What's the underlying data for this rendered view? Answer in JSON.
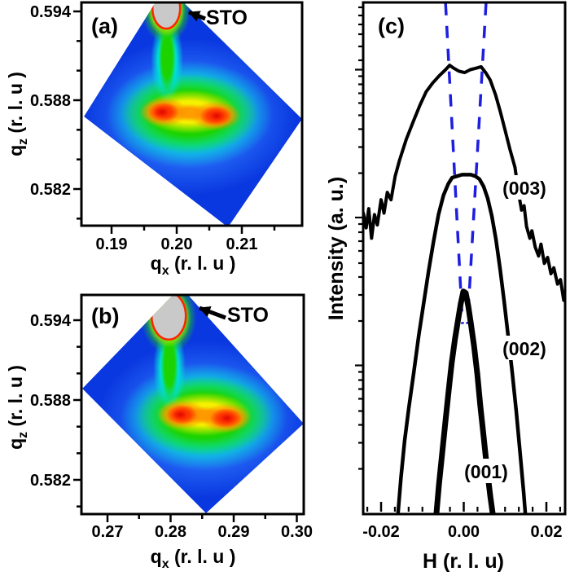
{
  "colors": {
    "map_blue_base": "#0a38e0",
    "map_blue_mid": "#2f7bff",
    "map_cyan": "#00e0d8",
    "map_green": "#1cd300",
    "map_yellow": "#f5f000",
    "map_orange": "#ff9000",
    "map_red": "#ff3200",
    "map_dark_red": "#dd0000",
    "substrate_gray": "#c9c9c9",
    "contour_red": "#ff2400",
    "guide_dash_blue": "#1e1ee0",
    "axis_black": "#000000"
  },
  "chart_data": [
    {
      "id": "a",
      "type": "heatmap",
      "panel_label": "(a)",
      "annotation": "STO",
      "xlabel_parts": {
        "base": "q",
        "sub": "x",
        "unit": " (r. l. u )"
      },
      "ylabel_parts": {
        "base": "q",
        "sub": "z",
        "unit": " (r. l. u )"
      },
      "xlim": [
        0.1854,
        0.2193
      ],
      "ylim": [
        0.5795,
        0.5946
      ],
      "x_ticks": {
        "major": [
          0.19,
          0.2,
          0.21
        ],
        "labels": [
          "0.19",
          "0.20",
          "0.21"
        ],
        "minor_step": 0.005
      },
      "y_ticks": {
        "major": [
          0.594,
          0.588,
          0.582
        ],
        "labels": [
          "0.594",
          "0.588",
          "0.582"
        ],
        "minor_step": 0.002
      },
      "colormap": "rainbow blue-to-red, gray = saturated substrate",
      "substrate_peak": {
        "qx": 0.1984,
        "qz": 0.5941
      },
      "film_peaks": [
        {
          "qx": 0.198,
          "qz": 0.5872
        },
        {
          "qx": 0.206,
          "qz": 0.587
        }
      ],
      "map_shape": "square rotated ~45deg"
    },
    {
      "id": "b",
      "type": "heatmap",
      "panel_label": "(b)",
      "annotation": "STO",
      "xlabel_parts": {
        "base": "q",
        "sub": "x",
        "unit": " (r. l. u )"
      },
      "ylabel_parts": {
        "base": "q",
        "sub": "z",
        "unit": " (r. l. u )"
      },
      "xlim": [
        0.2659,
        0.3011
      ],
      "ylim": [
        0.5794,
        0.5959
      ],
      "x_ticks": {
        "major": [
          0.27,
          0.28,
          0.29,
          0.3
        ],
        "labels": [
          "0.27",
          "0.28",
          "0.29",
          "0.30"
        ],
        "minor_step": 0.005
      },
      "y_ticks": {
        "major": [
          0.594,
          0.588,
          0.582
        ],
        "labels": [
          "0.594",
          "0.588",
          "0.582"
        ],
        "minor_step": 0.002
      },
      "colormap": "rainbow blue-to-red, gray = saturated substrate",
      "substrate_peak": {
        "qx": 0.2797,
        "qz": 0.5942
      },
      "film_peaks": [
        {
          "qx": 0.2818,
          "qz": 0.5869
        },
        {
          "qx": 0.2888,
          "qz": 0.5867
        }
      ],
      "map_shape": "square rotated ~45deg"
    },
    {
      "id": "c",
      "type": "line",
      "panel_label": "(c)",
      "xlabel": "H (r. l. u)",
      "ylabel": "Intensity (a. u.)",
      "yscale": "log",
      "xlim": [
        -0.0243,
        0.0245
      ],
      "ylim_log_decades": [
        0,
        3.45
      ],
      "x_ticks": {
        "major": [
          -0.02,
          0.0,
          0.02
        ],
        "labels": [
          "-0.02",
          "0.00",
          "0.02"
        ],
        "minor_step": 0.0033333
      },
      "curves": [
        {
          "name": "(003)",
          "points": [
            [
              -0.0243,
              2.03
            ],
            [
              -0.0236,
              1.93
            ],
            [
              -0.023,
              2.06
            ],
            [
              -0.0223,
              1.86
            ],
            [
              -0.0216,
              2.02
            ],
            [
              -0.0209,
              1.95
            ],
            [
              -0.02,
              2.12
            ],
            [
              -0.0193,
              2.03
            ],
            [
              -0.0185,
              2.17
            ],
            [
              -0.0176,
              2.12
            ],
            [
              -0.0166,
              2.28
            ],
            [
              -0.0155,
              2.39
            ],
            [
              -0.0139,
              2.53
            ],
            [
              -0.0122,
              2.65
            ],
            [
              -0.0106,
              2.76
            ],
            [
              -0.0091,
              2.85
            ],
            [
              -0.0075,
              2.91
            ],
            [
              -0.0059,
              2.96
            ],
            [
              -0.0044,
              3.0
            ],
            [
              -0.0034,
              3.03
            ],
            [
              -0.0024,
              3.01
            ],
            [
              -0.0012,
              2.99
            ],
            [
              0.0002,
              2.98
            ],
            [
              0.0016,
              3.0
            ],
            [
              0.003,
              3.01
            ],
            [
              0.0042,
              3.02
            ],
            [
              0.0053,
              2.98
            ],
            [
              0.0064,
              2.93
            ],
            [
              0.0077,
              2.83
            ],
            [
              0.0089,
              2.71
            ],
            [
              0.01,
              2.59
            ],
            [
              0.0112,
              2.46
            ],
            [
              0.0124,
              2.34
            ],
            [
              0.0133,
              2.16
            ],
            [
              0.014,
              2.05
            ],
            [
              0.0146,
              2.08
            ],
            [
              0.0152,
              1.94
            ],
            [
              0.016,
              1.86
            ],
            [
              0.0165,
              1.91
            ],
            [
              0.0173,
              1.8
            ],
            [
              0.0181,
              1.74
            ],
            [
              0.0187,
              1.82
            ],
            [
              0.0195,
              1.69
            ],
            [
              0.0203,
              1.73
            ],
            [
              0.0211,
              1.62
            ],
            [
              0.0218,
              1.66
            ],
            [
              0.0227,
              1.55
            ],
            [
              0.0234,
              1.58
            ],
            [
              0.0242,
              1.44
            ]
          ]
        },
        {
          "name": "(002)",
          "points": [
            [
              -0.0159,
              0.0
            ],
            [
              -0.0152,
              0.24
            ],
            [
              -0.0143,
              0.49
            ],
            [
              -0.0133,
              0.71
            ],
            [
              -0.0121,
              0.95
            ],
            [
              -0.0109,
              1.2
            ],
            [
              -0.0097,
              1.42
            ],
            [
              -0.0085,
              1.64
            ],
            [
              -0.0073,
              1.84
            ],
            [
              -0.0061,
              2.02
            ],
            [
              -0.0049,
              2.15
            ],
            [
              -0.0037,
              2.23
            ],
            [
              -0.0028,
              2.27
            ],
            [
              -0.0016,
              2.28
            ],
            [
              -0.0004,
              2.29
            ],
            [
              0.0006,
              2.29
            ],
            [
              0.0017,
              2.29
            ],
            [
              0.0028,
              2.28
            ],
            [
              0.0038,
              2.26
            ],
            [
              0.0048,
              2.21
            ],
            [
              0.0058,
              2.13
            ],
            [
              0.0068,
              2.01
            ],
            [
              0.0078,
              1.85
            ],
            [
              0.0088,
              1.65
            ],
            [
              0.0098,
              1.43
            ],
            [
              0.0107,
              1.21
            ],
            [
              0.0117,
              0.96
            ],
            [
              0.0127,
              0.69
            ],
            [
              0.0137,
              0.39
            ],
            [
              0.0145,
              0.14
            ],
            [
              0.0149,
              0.0
            ]
          ]
        },
        {
          "name": "(001)",
          "points": [
            [
              -0.0066,
              0.0
            ],
            [
              -0.006,
              0.19
            ],
            [
              -0.0052,
              0.41
            ],
            [
              -0.0044,
              0.63
            ],
            [
              -0.0036,
              0.84
            ],
            [
              -0.0029,
              1.02
            ],
            [
              -0.0021,
              1.18
            ],
            [
              -0.0013,
              1.32
            ],
            [
              -0.0007,
              1.42
            ],
            [
              -0.0001,
              1.5
            ],
            [
              0.0005,
              1.49
            ],
            [
              0.0011,
              1.4
            ],
            [
              0.0017,
              1.29
            ],
            [
              0.0025,
              1.13
            ],
            [
              0.0033,
              0.94
            ],
            [
              0.004,
              0.73
            ],
            [
              0.0048,
              0.52
            ],
            [
              0.0056,
              0.31
            ],
            [
              0.0064,
              0.12
            ],
            [
              0.007,
              0.0
            ]
          ]
        }
      ],
      "guides": {
        "style": "dashed",
        "lines": [
          {
            "from": [
              -0.0044,
              3.45
            ],
            "to": [
              -0.0003,
              1.28
            ]
          },
          {
            "from": [
              0.0054,
              3.45
            ],
            "to": [
              0.0009,
              1.28
            ]
          }
        ]
      }
    }
  ]
}
